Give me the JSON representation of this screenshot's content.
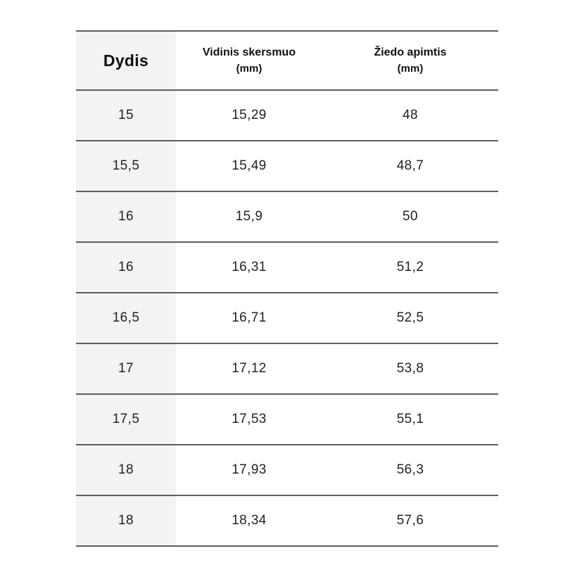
{
  "table": {
    "columns": [
      {
        "label": "Dydis",
        "sublabel": ""
      },
      {
        "label": "Vidinis skersmuo",
        "sublabel": "(mm)"
      },
      {
        "label": "Žiedo apimtis",
        "sublabel": "(mm)"
      }
    ],
    "rows": [
      [
        "15",
        "15,29",
        "48"
      ],
      [
        "15,5",
        "15,49",
        "48,7"
      ],
      [
        "16",
        "15,9",
        "50"
      ],
      [
        "16",
        "16,31",
        "51,2"
      ],
      [
        "16,5",
        "16,71",
        "52,5"
      ],
      [
        "17",
        "17,12",
        "53,8"
      ],
      [
        "17,5",
        "17,53",
        "55,1"
      ],
      [
        "18",
        "17,93",
        "56,3"
      ],
      [
        "18",
        "18,34",
        "57,6"
      ]
    ],
    "colors": {
      "size_column_bg": "#f3f3f3",
      "row_border": "#5e5e5e",
      "text": "#232323",
      "page_background": "#ffffff"
    }
  }
}
